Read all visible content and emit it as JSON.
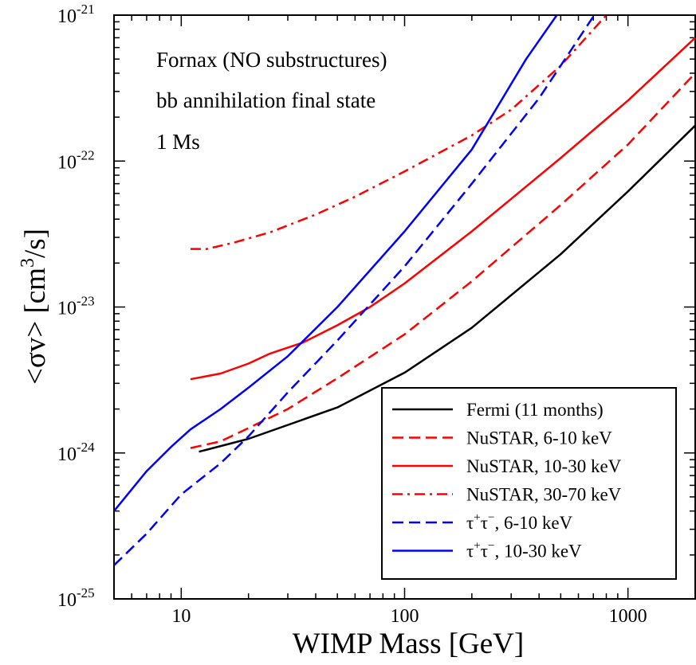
{
  "chart_data": {
    "type": "line",
    "title": "",
    "xlabel": "WIMP Mass [GeV]",
    "ylabel_parts": {
      "pre": "<σv> [cm",
      "sup": "3",
      "post": "/s]"
    },
    "xscale": "log",
    "yscale": "log",
    "xlim": [
      5,
      2000
    ],
    "ylim": [
      1e-25,
      1e-21
    ],
    "grid": false,
    "x_ticks": [
      {
        "value": 10,
        "label": "10"
      },
      {
        "value": 100,
        "label": "100"
      },
      {
        "value": 1000,
        "label": "1000"
      }
    ],
    "y_ticks": [
      {
        "value": 1e-25,
        "base": "10",
        "exp": "-25"
      },
      {
        "value": 1e-24,
        "base": "10",
        "exp": "-24"
      },
      {
        "value": 1e-23,
        "base": "10",
        "exp": "-23"
      },
      {
        "value": 1e-22,
        "base": "10",
        "exp": "-22"
      },
      {
        "value": 1e-21,
        "base": "10",
        "exp": "-21"
      }
    ],
    "annotations": [
      "Fornax (NO substructures)",
      "bb annihilation final state",
      "1 Ms"
    ],
    "legend_position": "bottom-right",
    "series": [
      {
        "name": "Fermi (11 months)",
        "color": "#000000",
        "dash": "solid",
        "points": [
          [
            12,
            1.02e-24
          ],
          [
            20,
            1.25e-24
          ],
          [
            50,
            2.05e-24
          ],
          [
            100,
            3.55e-24
          ],
          [
            200,
            7.2e-24
          ],
          [
            500,
            2.3e-23
          ],
          [
            1000,
            6.2e-23
          ],
          [
            2000,
            1.75e-22
          ]
        ]
      },
      {
        "name": "NuSTAR, 6-10 keV",
        "color": "#ff0000",
        "dash": "dashed",
        "points": [
          [
            11,
            1.08e-24
          ],
          [
            15,
            1.2e-24
          ],
          [
            20,
            1.48e-24
          ],
          [
            30,
            2e-24
          ],
          [
            50,
            3.25e-24
          ],
          [
            100,
            6.5e-24
          ],
          [
            200,
            1.5e-23
          ],
          [
            500,
            5e-23
          ],
          [
            1000,
            1.3e-22
          ],
          [
            2000,
            4e-22
          ]
        ]
      },
      {
        "name": "NuSTAR, 10-30 keV",
        "color": "#ff0000",
        "dash": "solid",
        "points": [
          [
            11,
            3.2e-24
          ],
          [
            15,
            3.5e-24
          ],
          [
            20,
            4.1e-24
          ],
          [
            25,
            4.8e-24
          ],
          [
            35,
            5.7e-24
          ],
          [
            50,
            7.5e-24
          ],
          [
            70,
            1e-23
          ],
          [
            100,
            1.45e-23
          ],
          [
            200,
            3.3e-23
          ],
          [
            500,
            1.05e-22
          ],
          [
            1000,
            2.6e-22
          ],
          [
            2000,
            7e-22
          ]
        ]
      },
      {
        "name": "NuSTAR, 30-70 keV",
        "color": "#ff0000",
        "dash": "dashdot",
        "points": [
          [
            11,
            2.5e-23
          ],
          [
            13,
            2.5e-23
          ],
          [
            17,
            2.75e-23
          ],
          [
            25,
            3.25e-23
          ],
          [
            40,
            4.3e-23
          ],
          [
            60,
            5.7e-23
          ],
          [
            100,
            8.5e-23
          ],
          [
            200,
            1.5e-22
          ],
          [
            300,
            2.25e-22
          ],
          [
            500,
            4.5e-22
          ],
          [
            800,
            1e-21
          ]
        ]
      },
      {
        "name": "τ⁺τ⁻, 6-10 keV",
        "label_parts": {
          "sup1": "+",
          "sup2": "−",
          "post": ", 6-10 keV"
        },
        "color": "#0000ff",
        "dash": "dashed",
        "points": [
          [
            5,
            1.7e-25
          ],
          [
            7,
            2.8e-25
          ],
          [
            10,
            5.2e-25
          ],
          [
            15,
            8.5e-25
          ],
          [
            20,
            1.3e-24
          ],
          [
            30,
            2.6e-24
          ],
          [
            50,
            5.9e-24
          ],
          [
            100,
            1.9e-23
          ],
          [
            200,
            7e-23
          ],
          [
            400,
            2.7e-22
          ],
          [
            700,
            9.8e-22
          ]
        ]
      },
      {
        "name": "τ⁺τ⁻, 10-30 keV",
        "label_parts": {
          "sup1": "+",
          "sup2": "−",
          "post": ", 10-30 keV"
        },
        "color": "#0000ff",
        "dash": "solid",
        "points": [
          [
            5,
            4e-25
          ],
          [
            7,
            7.5e-25
          ],
          [
            9,
            1.1e-24
          ],
          [
            11,
            1.45e-24
          ],
          [
            15,
            2e-24
          ],
          [
            20,
            2.8e-24
          ],
          [
            30,
            4.6e-24
          ],
          [
            50,
            1e-23
          ],
          [
            100,
            3.3e-23
          ],
          [
            200,
            1.2e-22
          ],
          [
            350,
            5e-22
          ],
          [
            480,
            1e-21
          ]
        ]
      }
    ]
  }
}
